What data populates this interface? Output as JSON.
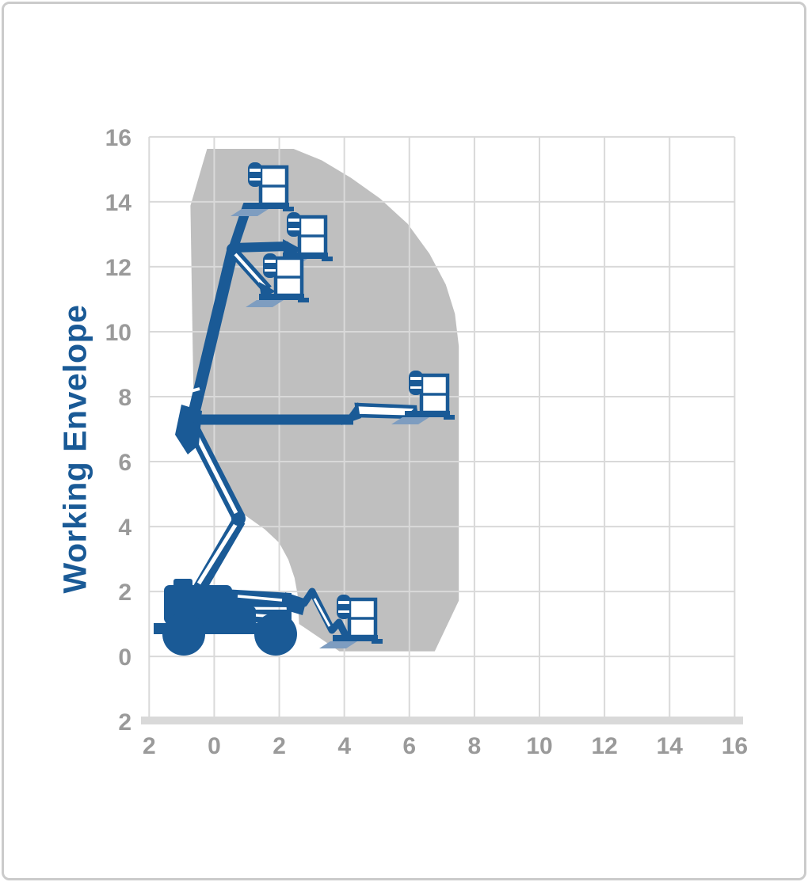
{
  "window": {
    "background": "#ffffff",
    "frame_border": "#cbcbcb"
  },
  "chart": {
    "title": "Working Envelope",
    "colors": {
      "title": "#1a5a96",
      "machine": "#1a5a96",
      "machine_accent": "#7e9dc0",
      "envelope_fill": "#bfbfbf",
      "grid_line": "#d9d9d9",
      "axis_band": "#d9d9d9",
      "tick_text": "#9a9a9a"
    }
  },
  "chart_data": {
    "type": "area",
    "title": "Working Envelope",
    "grid": true,
    "legend": false,
    "x_axis": {
      "range": [
        -2,
        16
      ],
      "tick_step": 2,
      "tick_values": [
        -2,
        0,
        2,
        4,
        6,
        8,
        10,
        12,
        14,
        16
      ],
      "tick_labels": [
        "2",
        "0",
        "2",
        "4",
        "6",
        "8",
        "10",
        "12",
        "14",
        "16"
      ]
    },
    "y_axis": {
      "range": [
        -2,
        16
      ],
      "tick_step": 2,
      "tick_values": [
        16,
        14,
        12,
        10,
        8,
        6,
        4,
        2,
        0,
        -2
      ],
      "tick_labels": [
        "16",
        "14",
        "12",
        "10",
        "8",
        "6",
        "4",
        "2",
        "0",
        "2"
      ]
    },
    "envelope_polygon": [
      [
        -0.73,
        13.88
      ],
      [
        -0.22,
        15.63
      ],
      [
        2.44,
        15.63
      ],
      [
        3.3,
        15.28
      ],
      [
        4.2,
        14.74
      ],
      [
        5.1,
        14.1
      ],
      [
        5.95,
        13.32
      ],
      [
        6.62,
        12.4
      ],
      [
        7.12,
        11.45
      ],
      [
        7.4,
        10.55
      ],
      [
        7.52,
        9.55
      ],
      [
        7.52,
        1.72
      ],
      [
        6.78,
        0.16
      ],
      [
        3.85,
        0.16
      ],
      [
        2.61,
        1.0
      ],
      [
        2.56,
        1.93
      ],
      [
        2.47,
        2.42
      ],
      [
        2.28,
        2.98
      ],
      [
        2.0,
        3.5
      ],
      [
        1.55,
        3.92
      ],
      [
        0.95,
        4.35
      ],
      [
        0.4,
        4.9
      ],
      [
        -0.12,
        5.58
      ],
      [
        -0.5,
        6.6
      ],
      [
        -0.63,
        7.5
      ]
    ],
    "platform_positions": [
      {
        "x": 1.7,
        "y": 14.4
      },
      {
        "x": 2.9,
        "y": 12.8
      },
      {
        "x": 2.2,
        "y": 11.6
      },
      {
        "x": 6.6,
        "y": 7.9
      },
      {
        "x": 4.4,
        "y": 1.1
      }
    ]
  }
}
